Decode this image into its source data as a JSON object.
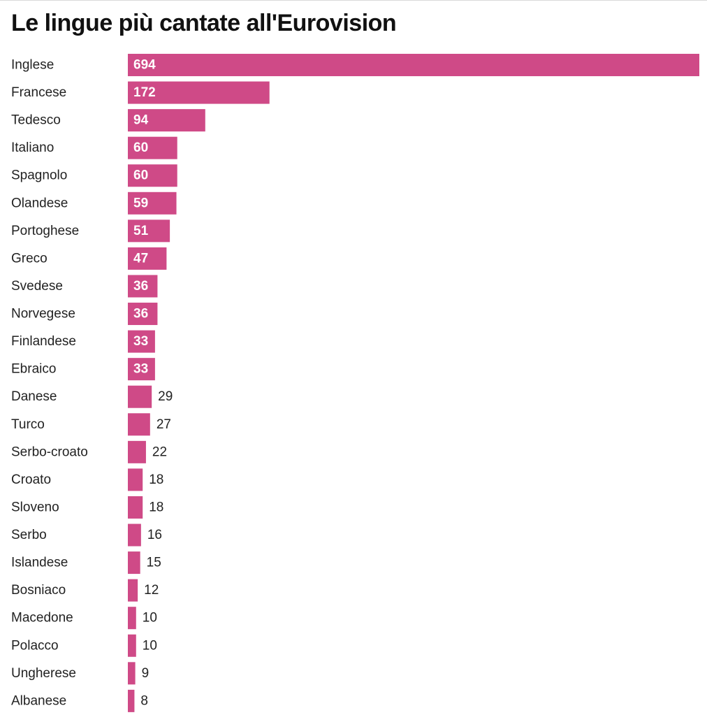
{
  "chart_data": {
    "type": "bar",
    "orientation": "horizontal",
    "title": "Le lingue più cantate all'Eurovision",
    "bar_color": "#cf4a87",
    "categories": [
      "Inglese",
      "Francese",
      "Tedesco",
      "Italiano",
      "Spagnolo",
      "Olandese",
      "Portoghese",
      "Greco",
      "Svedese",
      "Norvegese",
      "Finlandese",
      "Ebraico",
      "Danese",
      "Turco",
      "Serbo-croato",
      "Croato",
      "Sloveno",
      "Serbo",
      "Islandese",
      "Bosniaco",
      "Macedone",
      "Polacco",
      "Ungherese",
      "Albanese"
    ],
    "values": [
      694,
      172,
      94,
      60,
      60,
      59,
      51,
      47,
      36,
      36,
      33,
      33,
      29,
      27,
      22,
      18,
      18,
      16,
      15,
      12,
      10,
      10,
      9,
      8
    ],
    "xlim": [
      0,
      694
    ],
    "grid": false,
    "legend": "none"
  }
}
